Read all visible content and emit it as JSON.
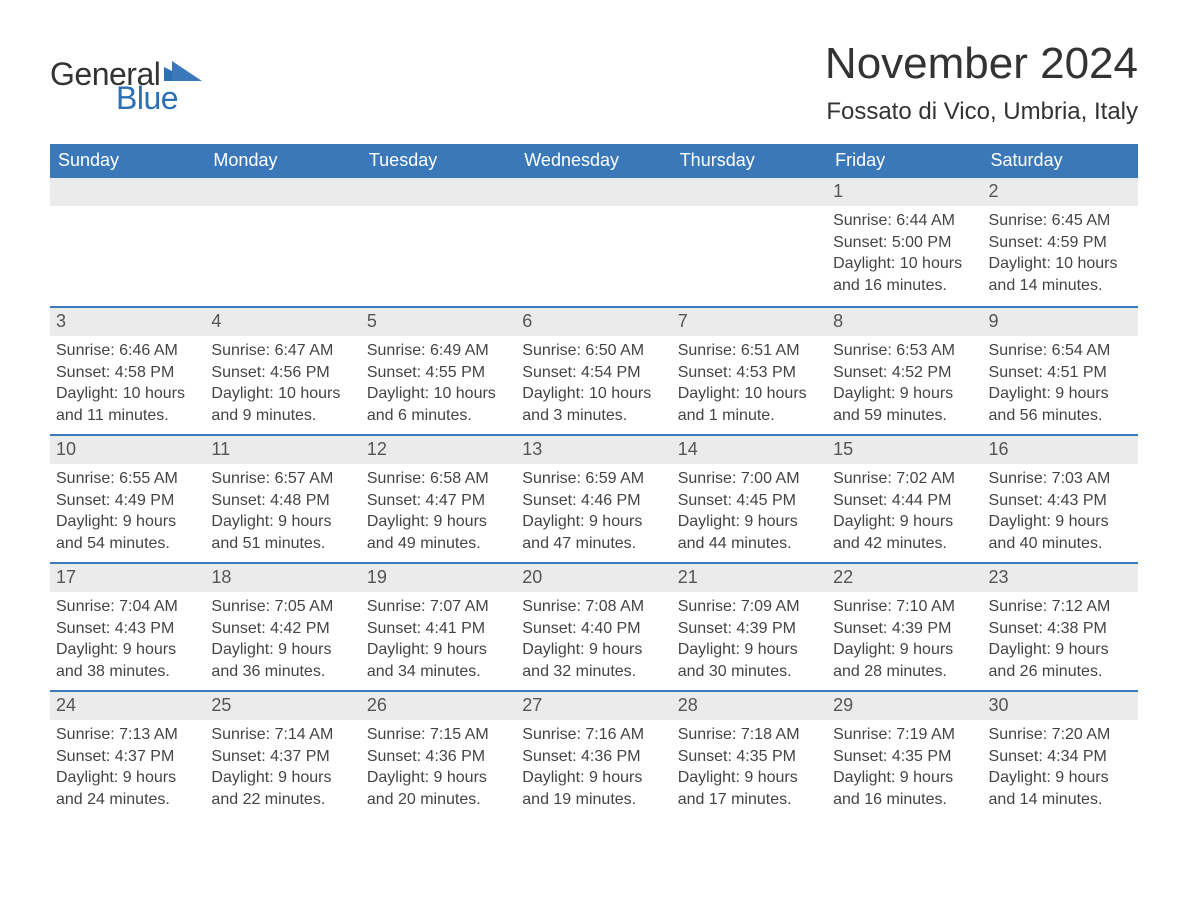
{
  "brand": {
    "word1": "General",
    "word2": "Blue"
  },
  "title": "November 2024",
  "subtitle": "Fossato di Vico, Umbria, Italy",
  "colors": {
    "header_bg": "#3a78b9",
    "header_text": "#ffffff",
    "daynum_bg": "#ebebeb",
    "text": "#333333",
    "brand_blue": "#2d6fb5",
    "week_border": "#3a78b9",
    "page_bg": "#ffffff"
  },
  "day_names": [
    "Sunday",
    "Monday",
    "Tuesday",
    "Wednesday",
    "Thursday",
    "Friday",
    "Saturday"
  ],
  "weeks": [
    [
      null,
      null,
      null,
      null,
      null,
      {
        "day": "1",
        "sunrise": "Sunrise: 6:44 AM",
        "sunset": "Sunset: 5:00 PM",
        "daylight1": "Daylight: 10 hours",
        "daylight2": "and 16 minutes."
      },
      {
        "day": "2",
        "sunrise": "Sunrise: 6:45 AM",
        "sunset": "Sunset: 4:59 PM",
        "daylight1": "Daylight: 10 hours",
        "daylight2": "and 14 minutes."
      }
    ],
    [
      {
        "day": "3",
        "sunrise": "Sunrise: 6:46 AM",
        "sunset": "Sunset: 4:58 PM",
        "daylight1": "Daylight: 10 hours",
        "daylight2": "and 11 minutes."
      },
      {
        "day": "4",
        "sunrise": "Sunrise: 6:47 AM",
        "sunset": "Sunset: 4:56 PM",
        "daylight1": "Daylight: 10 hours",
        "daylight2": "and 9 minutes."
      },
      {
        "day": "5",
        "sunrise": "Sunrise: 6:49 AM",
        "sunset": "Sunset: 4:55 PM",
        "daylight1": "Daylight: 10 hours",
        "daylight2": "and 6 minutes."
      },
      {
        "day": "6",
        "sunrise": "Sunrise: 6:50 AM",
        "sunset": "Sunset: 4:54 PM",
        "daylight1": "Daylight: 10 hours",
        "daylight2": "and 3 minutes."
      },
      {
        "day": "7",
        "sunrise": "Sunrise: 6:51 AM",
        "sunset": "Sunset: 4:53 PM",
        "daylight1": "Daylight: 10 hours",
        "daylight2": "and 1 minute."
      },
      {
        "day": "8",
        "sunrise": "Sunrise: 6:53 AM",
        "sunset": "Sunset: 4:52 PM",
        "daylight1": "Daylight: 9 hours",
        "daylight2": "and 59 minutes."
      },
      {
        "day": "9",
        "sunrise": "Sunrise: 6:54 AM",
        "sunset": "Sunset: 4:51 PM",
        "daylight1": "Daylight: 9 hours",
        "daylight2": "and 56 minutes."
      }
    ],
    [
      {
        "day": "10",
        "sunrise": "Sunrise: 6:55 AM",
        "sunset": "Sunset: 4:49 PM",
        "daylight1": "Daylight: 9 hours",
        "daylight2": "and 54 minutes."
      },
      {
        "day": "11",
        "sunrise": "Sunrise: 6:57 AM",
        "sunset": "Sunset: 4:48 PM",
        "daylight1": "Daylight: 9 hours",
        "daylight2": "and 51 minutes."
      },
      {
        "day": "12",
        "sunrise": "Sunrise: 6:58 AM",
        "sunset": "Sunset: 4:47 PM",
        "daylight1": "Daylight: 9 hours",
        "daylight2": "and 49 minutes."
      },
      {
        "day": "13",
        "sunrise": "Sunrise: 6:59 AM",
        "sunset": "Sunset: 4:46 PM",
        "daylight1": "Daylight: 9 hours",
        "daylight2": "and 47 minutes."
      },
      {
        "day": "14",
        "sunrise": "Sunrise: 7:00 AM",
        "sunset": "Sunset: 4:45 PM",
        "daylight1": "Daylight: 9 hours",
        "daylight2": "and 44 minutes."
      },
      {
        "day": "15",
        "sunrise": "Sunrise: 7:02 AM",
        "sunset": "Sunset: 4:44 PM",
        "daylight1": "Daylight: 9 hours",
        "daylight2": "and 42 minutes."
      },
      {
        "day": "16",
        "sunrise": "Sunrise: 7:03 AM",
        "sunset": "Sunset: 4:43 PM",
        "daylight1": "Daylight: 9 hours",
        "daylight2": "and 40 minutes."
      }
    ],
    [
      {
        "day": "17",
        "sunrise": "Sunrise: 7:04 AM",
        "sunset": "Sunset: 4:43 PM",
        "daylight1": "Daylight: 9 hours",
        "daylight2": "and 38 minutes."
      },
      {
        "day": "18",
        "sunrise": "Sunrise: 7:05 AM",
        "sunset": "Sunset: 4:42 PM",
        "daylight1": "Daylight: 9 hours",
        "daylight2": "and 36 minutes."
      },
      {
        "day": "19",
        "sunrise": "Sunrise: 7:07 AM",
        "sunset": "Sunset: 4:41 PM",
        "daylight1": "Daylight: 9 hours",
        "daylight2": "and 34 minutes."
      },
      {
        "day": "20",
        "sunrise": "Sunrise: 7:08 AM",
        "sunset": "Sunset: 4:40 PM",
        "daylight1": "Daylight: 9 hours",
        "daylight2": "and 32 minutes."
      },
      {
        "day": "21",
        "sunrise": "Sunrise: 7:09 AM",
        "sunset": "Sunset: 4:39 PM",
        "daylight1": "Daylight: 9 hours",
        "daylight2": "and 30 minutes."
      },
      {
        "day": "22",
        "sunrise": "Sunrise: 7:10 AM",
        "sunset": "Sunset: 4:39 PM",
        "daylight1": "Daylight: 9 hours",
        "daylight2": "and 28 minutes."
      },
      {
        "day": "23",
        "sunrise": "Sunrise: 7:12 AM",
        "sunset": "Sunset: 4:38 PM",
        "daylight1": "Daylight: 9 hours",
        "daylight2": "and 26 minutes."
      }
    ],
    [
      {
        "day": "24",
        "sunrise": "Sunrise: 7:13 AM",
        "sunset": "Sunset: 4:37 PM",
        "daylight1": "Daylight: 9 hours",
        "daylight2": "and 24 minutes."
      },
      {
        "day": "25",
        "sunrise": "Sunrise: 7:14 AM",
        "sunset": "Sunset: 4:37 PM",
        "daylight1": "Daylight: 9 hours",
        "daylight2": "and 22 minutes."
      },
      {
        "day": "26",
        "sunrise": "Sunrise: 7:15 AM",
        "sunset": "Sunset: 4:36 PM",
        "daylight1": "Daylight: 9 hours",
        "daylight2": "and 20 minutes."
      },
      {
        "day": "27",
        "sunrise": "Sunrise: 7:16 AM",
        "sunset": "Sunset: 4:36 PM",
        "daylight1": "Daylight: 9 hours",
        "daylight2": "and 19 minutes."
      },
      {
        "day": "28",
        "sunrise": "Sunrise: 7:18 AM",
        "sunset": "Sunset: 4:35 PM",
        "daylight1": "Daylight: 9 hours",
        "daylight2": "and 17 minutes."
      },
      {
        "day": "29",
        "sunrise": "Sunrise: 7:19 AM",
        "sunset": "Sunset: 4:35 PM",
        "daylight1": "Daylight: 9 hours",
        "daylight2": "and 16 minutes."
      },
      {
        "day": "30",
        "sunrise": "Sunrise: 7:20 AM",
        "sunset": "Sunset: 4:34 PM",
        "daylight1": "Daylight: 9 hours",
        "daylight2": "and 14 minutes."
      }
    ]
  ]
}
